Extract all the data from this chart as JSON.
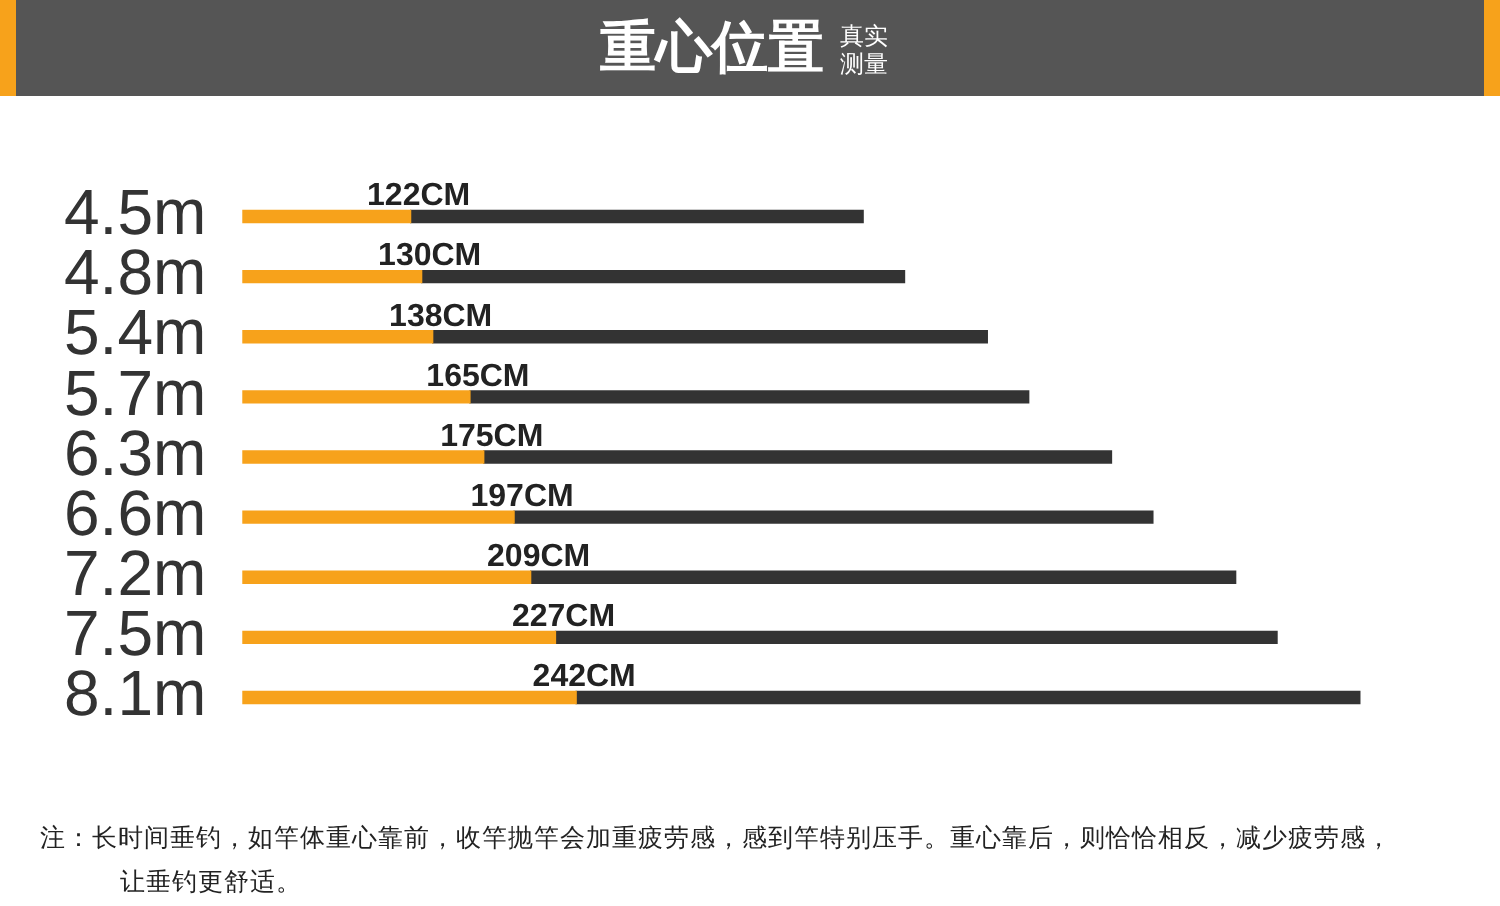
{
  "chart_data": {
    "type": "bar",
    "orientation": "horizontal",
    "title": "重心位置",
    "subtitle": "真实测量",
    "categories": [
      "4.5m",
      "4.8m",
      "5.4m",
      "5.7m",
      "6.3m",
      "6.6m",
      "7.2m",
      "7.5m",
      "8.1m"
    ],
    "series": [
      {
        "color": "#f7a21b",
        "values": [
          122,
          130,
          138,
          165,
          175,
          197,
          209,
          227,
          242
        ],
        "value_labels": [
          "122CM",
          "130CM",
          "138CM",
          "165CM",
          "175CM",
          "197CM",
          "209CM",
          "227CM",
          "242CM"
        ]
      },
      {
        "color": "#333333",
        "values": [
          328,
          350,
          402,
          405,
          455,
          463,
          511,
          523,
          568
        ]
      }
    ],
    "stacked": true,
    "tick_labels": "y",
    "grid": false,
    "legend": false,
    "annotations": [
      "注：长时间垂钓，如竿体重心靠前，收竿抛竿会加重疲劳感，感到竿特别压手。重心靠后，则恰恰相反，减少疲劳感，让垂钓更舒适。"
    ]
  }
}
